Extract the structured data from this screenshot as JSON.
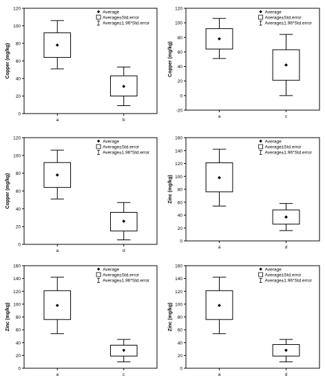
{
  "legend_labels": [
    "Average",
    "Average±Std.error",
    "Average±1.96*Std.error"
  ],
  "chart_data": [
    {
      "type": "box",
      "ylabel": "Copper (mg/kg)",
      "ylim": [
        0,
        120
      ],
      "yticks": [
        0,
        20,
        40,
        60,
        80,
        100,
        120
      ],
      "categories": [
        "a",
        "b"
      ],
      "boxes": [
        {
          "category": "a",
          "mean": 78,
          "se_low": 64,
          "se_high": 92,
          "ci_low": 51,
          "ci_high": 106
        },
        {
          "category": "b",
          "mean": 31,
          "se_low": 20,
          "se_high": 43,
          "ci_low": 9,
          "ci_high": 53
        }
      ],
      "legend": "top-right"
    },
    {
      "type": "box",
      "ylabel": "Copper (mg/kg)",
      "ylim": [
        -20,
        120
      ],
      "yticks": [
        -20,
        0,
        20,
        40,
        60,
        80,
        100,
        120
      ],
      "categories": [
        "a",
        "c"
      ],
      "boxes": [
        {
          "category": "a",
          "mean": 78,
          "se_low": 64,
          "se_high": 92,
          "ci_low": 51,
          "ci_high": 106
        },
        {
          "category": "c",
          "mean": 42,
          "se_low": 21,
          "se_high": 63,
          "ci_low": 0,
          "ci_high": 84
        }
      ],
      "legend": "top-right"
    },
    {
      "type": "box",
      "ylabel": "Copper (mg/kg)",
      "ylim": [
        0,
        120
      ],
      "yticks": [
        0,
        20,
        40,
        60,
        80,
        100,
        120
      ],
      "categories": [
        "a",
        "d"
      ],
      "boxes": [
        {
          "category": "a",
          "mean": 78,
          "se_low": 64,
          "se_high": 92,
          "ci_low": 51,
          "ci_high": 106
        },
        {
          "category": "d",
          "mean": 26,
          "se_low": 15,
          "se_high": 36,
          "ci_low": 5,
          "ci_high": 47
        }
      ],
      "legend": "top-right"
    },
    {
      "type": "box",
      "ylabel": "Zinc (mg/kg)",
      "ylim": [
        0,
        160
      ],
      "yticks": [
        0,
        20,
        40,
        60,
        80,
        100,
        120,
        140,
        160
      ],
      "categories": [
        "a",
        "d"
      ],
      "boxes": [
        {
          "category": "a",
          "mean": 98,
          "se_low": 76,
          "se_high": 121,
          "ci_low": 54,
          "ci_high": 142
        },
        {
          "category": "d",
          "mean": 37,
          "se_low": 26,
          "se_high": 48,
          "ci_low": 16,
          "ci_high": 58
        }
      ],
      "legend": "top-right"
    },
    {
      "type": "box",
      "ylabel": "Zinc (mg/kg)",
      "ylim": [
        0,
        160
      ],
      "yticks": [
        0,
        20,
        40,
        60,
        80,
        100,
        120,
        140,
        160
      ],
      "categories": [
        "a",
        "c"
      ],
      "boxes": [
        {
          "category": "a",
          "mean": 98,
          "se_low": 76,
          "se_high": 121,
          "ci_low": 54,
          "ci_high": 142
        },
        {
          "category": "c",
          "mean": 28,
          "se_low": 19,
          "se_high": 36,
          "ci_low": 10,
          "ci_high": 45
        }
      ],
      "legend": "top-right"
    },
    {
      "type": "box",
      "ylabel": "Zinc (mg/kg)",
      "ylim": [
        0,
        160
      ],
      "yticks": [
        0,
        20,
        40,
        60,
        80,
        100,
        120,
        140,
        160
      ],
      "categories": [
        "a",
        "d"
      ],
      "boxes": [
        {
          "category": "a",
          "mean": 98,
          "se_low": 76,
          "se_high": 121,
          "ci_low": 54,
          "ci_high": 142
        },
        {
          "category": "d",
          "mean": 28,
          "se_low": 19,
          "se_high": 37,
          "ci_low": 10,
          "ci_high": 45
        }
      ],
      "legend": "top-right"
    }
  ]
}
